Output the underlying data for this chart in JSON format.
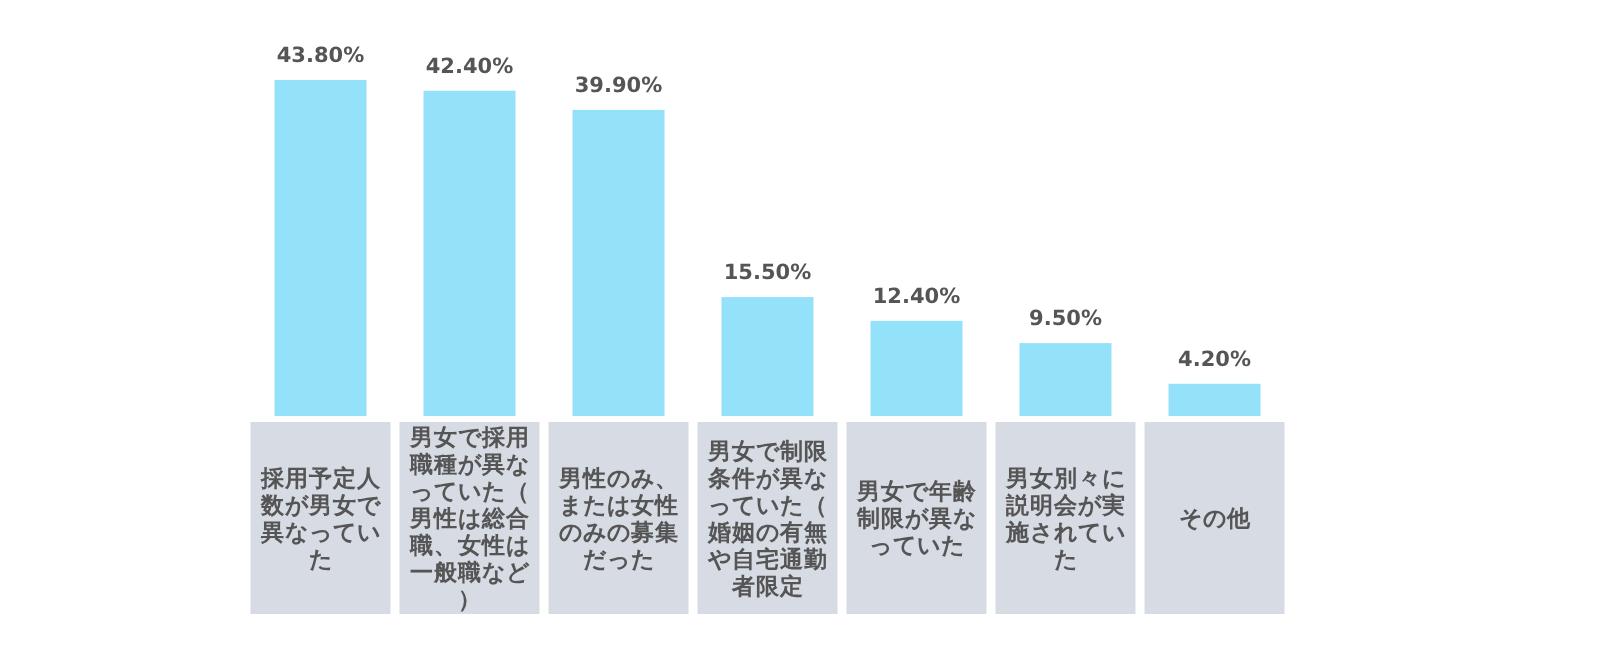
{
  "chart_data": {
    "type": "bar",
    "categories": [
      "採用予定人数が男女で異なっていた",
      "男女で採用職種が異なっていた（男性は総合職、女性は一般職など）",
      "男性のみ、または女性のみの募集だった",
      "男女で制限条件が異なっていた（婚姻の有無や自宅通勤者限定",
      "男女で年齢制限が異なっていた",
      "男女別々に説明会が実施されていた",
      "その他"
    ],
    "values": [
      43.8,
      42.4,
      39.9,
      15.5,
      12.4,
      9.5,
      4.2
    ],
    "value_labels": [
      "43.80%",
      "42.40%",
      "39.90%",
      "15.50%",
      "12.40%",
      "9.50%",
      "4.20%"
    ],
    "color": "#93e2fa"
  }
}
